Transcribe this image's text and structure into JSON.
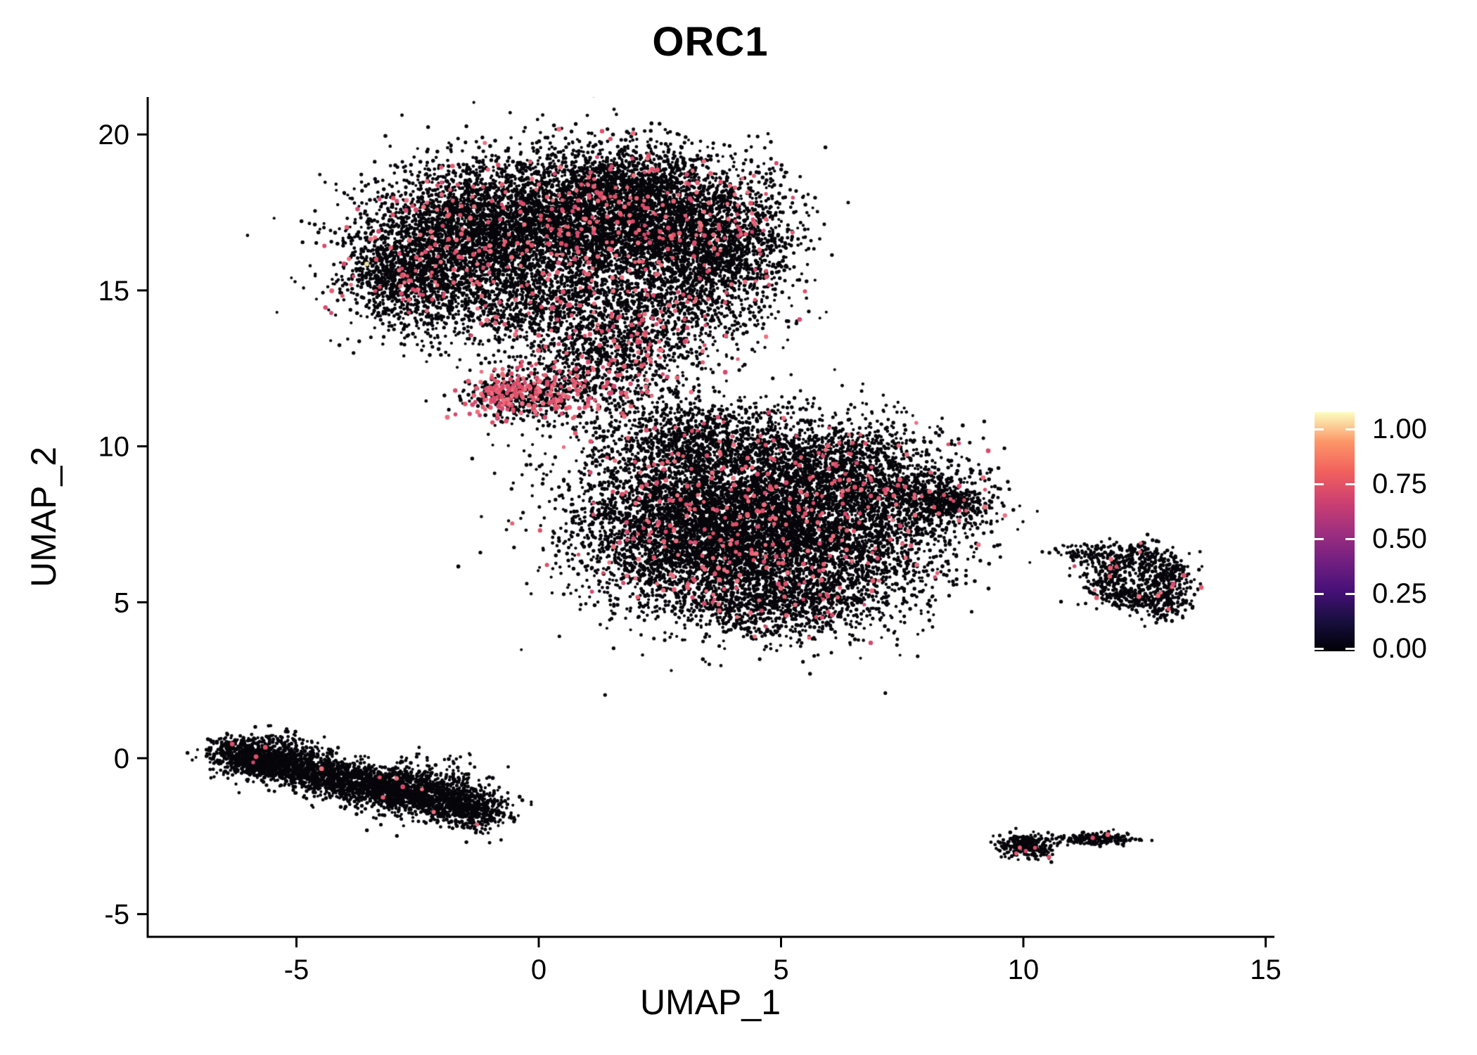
{
  "title": "ORC1",
  "axes": {
    "x": {
      "label": "UMAP_1",
      "ticks": [
        {
          "v": -5,
          "label": "-5"
        },
        {
          "v": 0,
          "label": "0"
        },
        {
          "v": 5,
          "label": "5"
        },
        {
          "v": 10,
          "label": "10"
        },
        {
          "v": 15,
          "label": "15"
        }
      ]
    },
    "y": {
      "label": "UMAP_2",
      "ticks": [
        {
          "v": -5,
          "label": "-5"
        },
        {
          "v": 0,
          "label": "0"
        },
        {
          "v": 5,
          "label": "5"
        },
        {
          "v": 10,
          "label": "10"
        },
        {
          "v": 15,
          "label": "15"
        },
        {
          "v": 20,
          "label": "20"
        }
      ]
    }
  },
  "legend": {
    "colormap_name": "magma",
    "tick_labels": [
      "1.00",
      "0.75",
      "0.50",
      "0.25",
      "0.00"
    ],
    "gradient_stops": [
      {
        "v": 0.0,
        "c": "#000004"
      },
      {
        "v": 0.125,
        "c": "#180f3e"
      },
      {
        "v": 0.25,
        "c": "#451077"
      },
      {
        "v": 0.375,
        "c": "#721f81"
      },
      {
        "v": 0.5,
        "c": "#9f2f7f"
      },
      {
        "v": 0.625,
        "c": "#cd4071"
      },
      {
        "v": 0.75,
        "c": "#f1605d"
      },
      {
        "v": 0.875,
        "c": "#fd9567"
      },
      {
        "v": 1.0,
        "c": "#fcfdbf"
      }
    ]
  },
  "chart_data": {
    "type": "scatter",
    "title": "ORC1",
    "xlabel": "UMAP_1",
    "ylabel": "UMAP_2",
    "xlim": [
      -8.1,
      15.2
    ],
    "ylim": [
      -5.7,
      21.2
    ],
    "x_ticks": [
      -5,
      0,
      5,
      10,
      15
    ],
    "y_ticks": [
      -5,
      0,
      5,
      10,
      15,
      20
    ],
    "legend_range": [
      0.0,
      1.0
    ],
    "colors": {
      "zero": "#07060b",
      "positive": [
        "#df4f68",
        "#e75f72",
        "#d84a6e",
        "#ef6f7e"
      ]
    },
    "clusters": [
      {
        "name": "upper-blob",
        "pos_frac": 0.04,
        "blobs": [
          {
            "cx": -1.6,
            "cy": 16.4,
            "sx": 1.15,
            "sy": 1.25,
            "n": 2600
          },
          {
            "cx": 0.4,
            "cy": 17.4,
            "sx": 1.4,
            "sy": 1.0,
            "n": 2800
          },
          {
            "cx": 2.3,
            "cy": 17.0,
            "sx": 1.2,
            "sy": 1.1,
            "n": 2400
          },
          {
            "cx": 3.8,
            "cy": 16.2,
            "sx": 0.75,
            "sy": 1.3,
            "n": 1300
          },
          {
            "cx": -2.7,
            "cy": 15.4,
            "sx": 0.6,
            "sy": 0.7,
            "n": 700
          },
          {
            "cx": 0.8,
            "cy": 14.6,
            "sx": 1.5,
            "sy": 0.8,
            "n": 1300
          },
          {
            "cx": 2.0,
            "cy": 18.7,
            "sx": 0.9,
            "sy": 0.55,
            "n": 500
          }
        ]
      },
      {
        "name": "bridge-left-high-expression",
        "pos_frac": 0.28,
        "blobs": [
          {
            "cx": 0.0,
            "cy": 11.7,
            "sx": 0.7,
            "sy": 0.45,
            "n": 450
          },
          {
            "cx": -0.7,
            "cy": 11.6,
            "sx": 0.4,
            "sy": 0.3,
            "n": 250
          }
        ]
      },
      {
        "name": "bridge-right",
        "pos_frac": 0.1,
        "blobs": [
          {
            "cx": 1.3,
            "cy": 12.5,
            "sx": 0.9,
            "sy": 0.8,
            "n": 600
          },
          {
            "cx": 2.2,
            "cy": 13.3,
            "sx": 0.7,
            "sy": 0.6,
            "n": 300
          }
        ]
      },
      {
        "name": "central-blob",
        "pos_frac": 0.035,
        "blobs": [
          {
            "cx": 4.0,
            "cy": 8.2,
            "sx": 1.6,
            "sy": 1.4,
            "n": 4200
          },
          {
            "cx": 5.6,
            "cy": 6.6,
            "sx": 1.4,
            "sy": 1.1,
            "n": 2600
          },
          {
            "cx": 2.9,
            "cy": 6.9,
            "sx": 1.0,
            "sy": 1.2,
            "n": 1600
          },
          {
            "cx": 6.4,
            "cy": 9.2,
            "sx": 1.1,
            "sy": 0.8,
            "n": 1300
          },
          {
            "cx": 3.2,
            "cy": 10.3,
            "sx": 1.0,
            "sy": 0.6,
            "n": 700
          },
          {
            "cx": 7.9,
            "cy": 8.2,
            "sx": 0.8,
            "sy": 0.45,
            "n": 500
          },
          {
            "cx": 8.6,
            "cy": 8.2,
            "sx": 0.35,
            "sy": 0.25,
            "n": 160
          },
          {
            "cx": 4.8,
            "cy": 4.9,
            "sx": 1.0,
            "sy": 0.55,
            "n": 600
          }
        ]
      },
      {
        "name": "right-ring",
        "pos_frac": 0.015,
        "ring": {
          "cx": 12.35,
          "cy": 5.8,
          "r": 0.75,
          "sr": 0.26,
          "rx": 1.0,
          "ry": 0.95,
          "n": 760
        },
        "blobs": [
          {
            "cx": 11.35,
            "cy": 6.6,
            "sx": 0.35,
            "sy": 0.18,
            "n": 90
          },
          {
            "cx": 13.0,
            "cy": 4.85,
            "sx": 0.22,
            "sy": 0.3,
            "n": 110
          }
        ]
      },
      {
        "name": "lower-left-streak",
        "pos_frac": 0.003,
        "segment": {
          "x1": -6.5,
          "y1": 0.2,
          "x2": -0.9,
          "y2": -1.8,
          "sperp": 0.3,
          "salong": 0.25,
          "n": 3000
        },
        "blobs": [
          {
            "cx": -5.5,
            "cy": 0.05,
            "sx": 0.55,
            "sy": 0.35,
            "n": 450
          },
          {
            "cx": -2.6,
            "cy": -0.9,
            "sx": 0.8,
            "sy": 0.45,
            "n": 500
          }
        ]
      },
      {
        "name": "bottom-small-left",
        "pos_frac": 0.03,
        "blobs": [
          {
            "cx": 10.05,
            "cy": -2.8,
            "sx": 0.3,
            "sy": 0.17,
            "n": 260
          }
        ]
      },
      {
        "name": "bottom-small-right",
        "pos_frac": 0.02,
        "blobs": [
          {
            "cx": 11.55,
            "cy": -2.6,
            "sx": 0.45,
            "sy": 0.09,
            "n": 200
          }
        ]
      },
      {
        "name": "isolated-points",
        "pos_frac": 0,
        "points": [
          {
            "x": 6.85,
            "y": 3.7,
            "pos": true
          },
          {
            "x": 6.7,
            "y": 3.78,
            "pos": false
          },
          {
            "x": -3.55,
            "y": 15.85,
            "pos": true,
            "c": "#f3e3a2"
          }
        ]
      }
    ]
  }
}
